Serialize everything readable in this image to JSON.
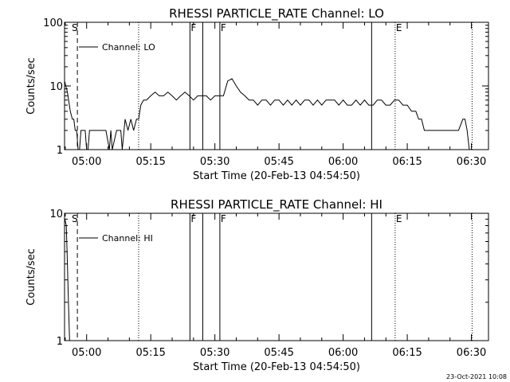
{
  "footer": {
    "timestamp": "23-Oct-2021 10:08"
  },
  "chart_data": [
    {
      "type": "line",
      "title": "RHESSI PARTICLE_RATE Channel: LO",
      "xlabel": "Start Time (20-Feb-13 04:54:50)",
      "ylabel": "Counts/sec",
      "yscale": "log",
      "xlim": [
        "04:54:50",
        "06:34:00"
      ],
      "ylim": [
        1,
        100
      ],
      "x_ticks": [
        "05:00",
        "05:15",
        "05:30",
        "05:45",
        "06:00",
        "06:15",
        "06:30"
      ],
      "y_ticks": [
        "1",
        "10",
        "100"
      ],
      "grid": false,
      "legend": {
        "position": "top-left",
        "entries": [
          "Channel: LO"
        ]
      },
      "markers": [
        {
          "time": "04:56:20",
          "label": "S",
          "style": "none"
        },
        {
          "time": "04:57:50",
          "label": "",
          "style": "dashed"
        },
        {
          "time": "05:12:10",
          "label": "",
          "style": "dotted"
        },
        {
          "time": "05:24:10",
          "label": "F",
          "style": "solid"
        },
        {
          "time": "05:27:10",
          "label": "",
          "style": "solid"
        },
        {
          "time": "05:31:10",
          "label": "F",
          "style": "solid"
        },
        {
          "time": "06:06:40",
          "label": "",
          "style": "solid"
        },
        {
          "time": "06:12:10",
          "label": "E",
          "style": "dotted"
        },
        {
          "time": "06:30:10",
          "label": "",
          "style": "dotted"
        }
      ],
      "series": [
        {
          "name": "Channel: LO",
          "x": [
            "04:54:50",
            "04:55:30",
            "04:56:10",
            "04:56:40",
            "04:57:00",
            "04:57:20",
            "04:57:40",
            "04:58:00",
            "04:58:20",
            "04:58:40",
            "04:59:00",
            "04:59:20",
            "04:59:40",
            "05:00:00",
            "05:00:20",
            "05:00:40",
            "05:01:30",
            "05:03:00",
            "05:04:30",
            "05:05:20",
            "05:05:40",
            "05:06:00",
            "05:07:00",
            "05:07:40",
            "05:08:00",
            "05:08:20",
            "05:09:00",
            "05:09:40",
            "05:10:20",
            "05:11:00",
            "05:11:40",
            "05:12:10",
            "05:12:40",
            "05:13:20",
            "05:14:00",
            "05:15:00",
            "05:16:00",
            "05:17:00",
            "05:18:00",
            "05:19:00",
            "05:20:00",
            "05:21:00",
            "05:22:00",
            "05:23:00",
            "05:24:00",
            "05:25:00",
            "05:26:00",
            "05:27:00",
            "05:28:00",
            "05:29:00",
            "05:30:00",
            "05:31:00",
            "05:32:00",
            "05:33:00",
            "05:34:00",
            "05:35:00",
            "05:36:00",
            "05:37:00",
            "05:38:00",
            "05:39:00",
            "05:40:00",
            "05:41:00",
            "05:42:00",
            "05:43:00",
            "05:44:00",
            "05:45:00",
            "05:46:00",
            "05:47:00",
            "05:48:00",
            "05:49:00",
            "05:50:00",
            "05:51:00",
            "05:52:00",
            "05:53:00",
            "05:54:00",
            "05:55:00",
            "05:56:00",
            "05:57:00",
            "05:58:00",
            "05:59:00",
            "06:00:00",
            "06:01:00",
            "06:02:00",
            "06:03:00",
            "06:04:00",
            "06:05:00",
            "06:06:00",
            "06:07:00",
            "06:08:00",
            "06:09:00",
            "06:10:00",
            "06:11:00",
            "06:12:00",
            "06:13:00",
            "06:14:00",
            "06:15:00",
            "06:16:00",
            "06:17:00",
            "06:17:40",
            "06:18:20",
            "06:19:00",
            "06:20:00",
            "06:21:00",
            "06:22:00",
            "06:23:00",
            "06:24:00",
            "06:25:00",
            "06:26:00",
            "06:27:00",
            "06:28:00",
            "06:28:30",
            "06:29:00",
            "06:29:30"
          ],
          "y": [
            12,
            8,
            4,
            3,
            3,
            2,
            2,
            1,
            1,
            2,
            2,
            2,
            2,
            1,
            1,
            2,
            2,
            2,
            2,
            1,
            2,
            1,
            2,
            2,
            2,
            1,
            3,
            2,
            3,
            2,
            3,
            3,
            5,
            6,
            6,
            7,
            8,
            7,
            7,
            8,
            7,
            6,
            7,
            8,
            7,
            6,
            7,
            7,
            7,
            6,
            7,
            7,
            7,
            12,
            13,
            10,
            8,
            7,
            6,
            6,
            5,
            6,
            6,
            5,
            6,
            6,
            5,
            6,
            5,
            6,
            5,
            6,
            6,
            5,
            6,
            5,
            6,
            6,
            6,
            5,
            6,
            5,
            5,
            6,
            5,
            6,
            5,
            5,
            6,
            6,
            5,
            5,
            6,
            6,
            5,
            5,
            4,
            4,
            3,
            3,
            2,
            2,
            2,
            2,
            2,
            2,
            2,
            2,
            2,
            3,
            3,
            2,
            1
          ]
        }
      ]
    },
    {
      "type": "line",
      "title": "RHESSI PARTICLE_RATE Channel: HI",
      "xlabel": "Start Time (20-Feb-13 04:54:50)",
      "ylabel": "Counts/sec",
      "yscale": "log",
      "xlim": [
        "04:54:50",
        "06:34:00"
      ],
      "ylim": [
        1,
        10
      ],
      "x_ticks": [
        "05:00",
        "05:15",
        "05:30",
        "05:45",
        "06:00",
        "06:15",
        "06:30"
      ],
      "y_ticks": [
        "1",
        "10"
      ],
      "grid": false,
      "legend": {
        "position": "top-left",
        "entries": [
          "Channel: HI"
        ]
      },
      "markers": [
        {
          "time": "04:56:20",
          "label": "S",
          "style": "none"
        },
        {
          "time": "04:57:50",
          "label": "",
          "style": "dashed"
        },
        {
          "time": "05:12:10",
          "label": "",
          "style": "dotted"
        },
        {
          "time": "05:24:10",
          "label": "F",
          "style": "solid"
        },
        {
          "time": "05:27:10",
          "label": "",
          "style": "solid"
        },
        {
          "time": "05:31:10",
          "label": "F",
          "style": "solid"
        },
        {
          "time": "06:06:40",
          "label": "",
          "style": "solid"
        },
        {
          "time": "06:12:10",
          "label": "E",
          "style": "dotted"
        },
        {
          "time": "06:30:10",
          "label": "",
          "style": "dotted"
        }
      ],
      "series": [
        {
          "name": "Channel: HI",
          "x": [
            "04:54:55",
            "04:55:15",
            "04:55:30",
            "04:55:45",
            "04:56:00"
          ],
          "y": [
            9,
            8,
            4,
            2,
            1
          ]
        }
      ]
    }
  ]
}
